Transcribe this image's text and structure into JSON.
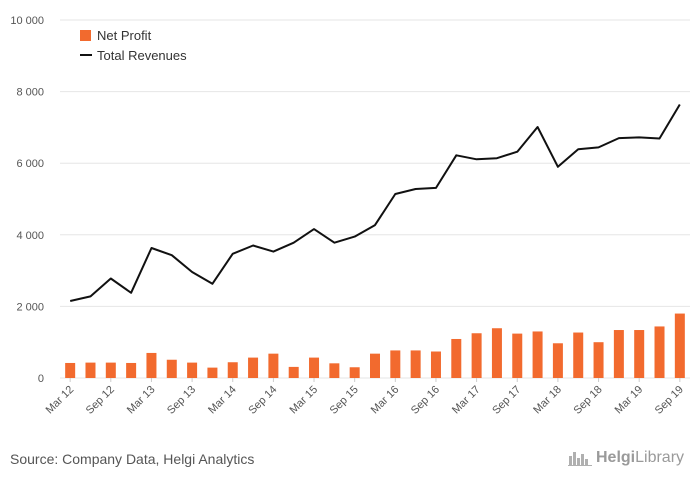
{
  "chart_data": {
    "type": "bar",
    "categories": [
      "Mar 12",
      "Jun 12",
      "Sep 12",
      "Dec 12",
      "Mar 13",
      "Jun 13",
      "Sep 13",
      "Dec 13",
      "Mar 14",
      "Jun 14",
      "Sep 14",
      "Dec 14",
      "Mar 15",
      "Jun 15",
      "Sep 15",
      "Dec 15",
      "Mar 16",
      "Jun 16",
      "Sep 16",
      "Dec 16",
      "Mar 17",
      "Jun 17",
      "Sep 17",
      "Dec 17",
      "Mar 18",
      "Jun 18",
      "Sep 18",
      "Dec 18",
      "Mar 19",
      "Jun 19",
      "Sep 19"
    ],
    "x_tick_labels": [
      "Mar 12",
      "Sep 12",
      "Mar 13",
      "Sep 13",
      "Mar 14",
      "Sep 14",
      "Mar 15",
      "Sep 15",
      "Mar 16",
      "Sep 16",
      "Mar 17",
      "Sep 17",
      "Mar 18",
      "Sep 18",
      "Mar 19",
      "Sep 19"
    ],
    "y_tick_labels": [
      "0",
      "2 000",
      "4 000",
      "6 000",
      "8 000",
      "10 000"
    ],
    "ylim": [
      0,
      10000
    ],
    "series": [
      {
        "name": "Net Profit",
        "type": "bar",
        "color": "#f26a2e",
        "values": [
          420,
          430,
          430,
          420,
          700,
          510,
          430,
          290,
          440,
          570,
          680,
          310,
          570,
          410,
          300,
          680,
          770,
          770,
          740,
          1090,
          1250,
          1390,
          1240,
          1300,
          970,
          1270,
          1000,
          1340,
          1340,
          1440,
          1800
        ]
      },
      {
        "name": "Total Revenues",
        "type": "line",
        "color": "#111111",
        "values": [
          2150,
          2280,
          2780,
          2380,
          3630,
          3430,
          2960,
          2630,
          3470,
          3700,
          3530,
          3780,
          4160,
          3780,
          3950,
          4270,
          5140,
          5280,
          5310,
          6220,
          6110,
          6140,
          6320,
          7010,
          5900,
          6390,
          6440,
          6700,
          6720,
          6690,
          7640
        ]
      }
    ],
    "legend_position": "top-left",
    "grid": "horizontal"
  },
  "footer": {
    "source": "Source: Company Data, Helgi Analytics",
    "logo_brand": "Helgi",
    "logo_rest": "Library"
  },
  "colors": {
    "bar": "#f26a2e",
    "line": "#111111",
    "grid": "#e6e6e6",
    "axis_text": "#555555"
  }
}
